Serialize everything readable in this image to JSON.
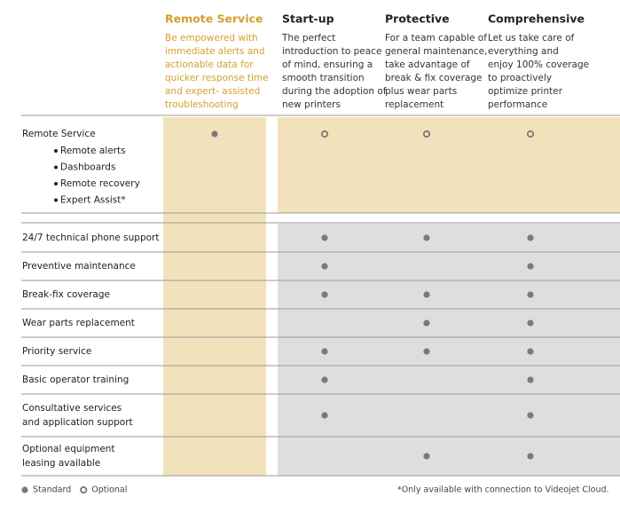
{
  "columns": [
    {
      "title": "Remote Service",
      "highlight": true,
      "description": [
        "Be empowered with",
        "immediate alerts and",
        "actionable data for",
        "quicker response time",
        "and expert- assisted",
        "troubleshooting"
      ]
    },
    {
      "title": "Start-up",
      "description": [
        "The perfect",
        "introduction to peace",
        "of mind, ensuring a",
        "smooth transition",
        "during the adoption of",
        "new printers"
      ]
    },
    {
      "title": "Protective",
      "description": [
        "For a team capable of",
        "general maintenance,",
        "take advantage of",
        "break & fix coverage",
        "plus wear parts",
        "replacement"
      ]
    },
    {
      "title": "Comprehensive",
      "description": [
        "Let us take care of",
        "everything and",
        "enjoy 100% coverage",
        "to proactively",
        "optimize printer",
        "performance"
      ]
    }
  ],
  "remote_row": {
    "label": "Remote Service",
    "bullets": [
      "Remote alerts",
      "Dashboards",
      "Remote recovery",
      "Expert Assist*"
    ],
    "cells": [
      "standard",
      "optional",
      "optional",
      "optional"
    ]
  },
  "rows": [
    {
      "label": [
        "24/7 technical phone support"
      ],
      "cells": [
        null,
        "standard",
        "standard",
        "standard"
      ]
    },
    {
      "label": [
        "Preventive maintenance"
      ],
      "cells": [
        null,
        "standard",
        null,
        "standard"
      ]
    },
    {
      "label": [
        "Break-fix coverage"
      ],
      "cells": [
        null,
        "standard",
        "standard",
        "standard"
      ]
    },
    {
      "label": [
        "Wear parts replacement"
      ],
      "cells": [
        null,
        null,
        "standard",
        "standard"
      ]
    },
    {
      "label": [
        "Priority service"
      ],
      "cells": [
        null,
        "standard",
        "standard",
        "standard"
      ]
    },
    {
      "label": [
        "Basic operator training"
      ],
      "cells": [
        null,
        "standard",
        null,
        "standard"
      ]
    },
    {
      "label": [
        "Consultative services",
        "and application support"
      ],
      "cells": [
        null,
        "standard",
        null,
        "standard"
      ]
    },
    {
      "label": [
        "Optional equipment",
        "leasing available"
      ],
      "cells": [
        null,
        null,
        "standard",
        "standard"
      ]
    }
  ],
  "legend": [
    {
      "label": "Standard",
      "kind": "standard"
    },
    {
      "label": "Optional",
      "kind": "optional"
    }
  ],
  "footnote": "*Only available with connection to Videojet Cloud."
}
